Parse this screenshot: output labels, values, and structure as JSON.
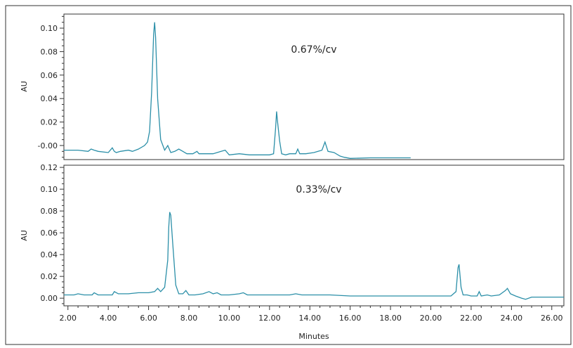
{
  "chart_data": [
    {
      "type": "line",
      "annotation": "0.67%/cv",
      "ylabel": "AU",
      "xlabel": "",
      "xlim": [
        1.8,
        26.6
      ],
      "ylim": [
        -0.012,
        0.112
      ],
      "yticks": [
        "-0.00",
        "0.02",
        "0.04",
        "0.06",
        "0.08",
        "0.10"
      ],
      "ytick_values": [
        0,
        0.02,
        0.04,
        0.06,
        0.08,
        0.1
      ],
      "grid": false,
      "color": "#2b8fa8",
      "x": [
        1.8,
        2.5,
        3.0,
        3.15,
        3.3,
        3.5,
        4.0,
        4.2,
        4.3,
        4.4,
        4.6,
        5.0,
        5.2,
        5.5,
        5.8,
        5.95,
        6.05,
        6.15,
        6.25,
        6.3,
        6.35,
        6.45,
        6.6,
        6.8,
        6.95,
        7.1,
        7.3,
        7.5,
        7.7,
        7.9,
        8.2,
        8.4,
        8.5,
        8.7,
        9.2,
        9.6,
        9.8,
        10.0,
        10.5,
        11.0,
        11.5,
        12.0,
        12.2,
        12.3,
        12.35,
        12.4,
        12.5,
        12.6,
        12.8,
        13.0,
        13.3,
        13.4,
        13.5,
        13.8,
        14.2,
        14.6,
        14.75,
        14.9,
        15.2,
        15.5,
        15.7,
        16.0,
        17.0,
        18.0,
        19.0
      ],
      "values": [
        -0.004,
        -0.004,
        -0.005,
        -0.003,
        -0.004,
        -0.005,
        -0.006,
        -0.002,
        -0.005,
        -0.006,
        -0.005,
        -0.004,
        -0.005,
        -0.003,
        0.0,
        0.003,
        0.012,
        0.045,
        0.095,
        0.105,
        0.092,
        0.04,
        0.005,
        -0.004,
        0.0,
        -0.006,
        -0.005,
        -0.003,
        -0.005,
        -0.007,
        -0.007,
        -0.005,
        -0.007,
        -0.007,
        -0.007,
        -0.005,
        -0.004,
        -0.008,
        -0.007,
        -0.008,
        -0.008,
        -0.008,
        -0.007,
        0.015,
        0.029,
        0.02,
        0.004,
        -0.007,
        -0.008,
        -0.007,
        -0.007,
        -0.003,
        -0.007,
        -0.007,
        -0.006,
        -0.004,
        0.003,
        -0.005,
        -0.006,
        -0.009,
        -0.01,
        -0.011,
        -0.0105,
        -0.0105,
        -0.0105
      ]
    },
    {
      "type": "line",
      "annotation": "0.33%/cv",
      "ylabel": "AU",
      "xlabel": "Minutes",
      "xlim": [
        1.8,
        26.6
      ],
      "ylim": [
        -0.007,
        0.122
      ],
      "yticks": [
        "0.00",
        "0.02",
        "0.04",
        "0.06",
        "0.08",
        "0.10",
        "0.12"
      ],
      "ytick_values": [
        0,
        0.02,
        0.04,
        0.06,
        0.08,
        0.1,
        0.12
      ],
      "xticks": [
        "2.00",
        "4.00",
        "6.00",
        "8.00",
        "10.00",
        "12.00",
        "14.00",
        "16.00",
        "18.00",
        "20.00",
        "22.00",
        "24.00",
        "26.00"
      ],
      "xtick_values": [
        2,
        4,
        6,
        8,
        10,
        12,
        14,
        16,
        18,
        20,
        22,
        24,
        26
      ],
      "grid": false,
      "color": "#2b8fa8",
      "x": [
        1.8,
        2.3,
        2.5,
        2.8,
        3.2,
        3.3,
        3.5,
        4.0,
        4.2,
        4.3,
        4.5,
        5.0,
        5.5,
        6.0,
        6.3,
        6.45,
        6.6,
        6.8,
        6.95,
        7.0,
        7.05,
        7.1,
        7.2,
        7.35,
        7.5,
        7.7,
        7.85,
        8.0,
        8.3,
        8.7,
        9.0,
        9.2,
        9.4,
        9.6,
        10.0,
        10.5,
        10.7,
        10.9,
        11.5,
        12.0,
        12.5,
        13.0,
        13.3,
        13.6,
        14.0,
        15.0,
        16.0,
        17.0,
        18.0,
        19.0,
        20.0,
        21.0,
        21.25,
        21.35,
        21.4,
        21.5,
        21.6,
        21.8,
        22.0,
        22.3,
        22.4,
        22.5,
        22.8,
        23.0,
        23.4,
        23.7,
        23.8,
        23.95,
        24.2,
        24.5,
        24.7,
        25.0,
        26.0,
        26.6
      ],
      "values": [
        0.003,
        0.003,
        0.004,
        0.003,
        0.003,
        0.005,
        0.003,
        0.003,
        0.003,
        0.006,
        0.004,
        0.004,
        0.005,
        0.005,
        0.006,
        0.009,
        0.006,
        0.01,
        0.035,
        0.065,
        0.079,
        0.076,
        0.05,
        0.012,
        0.004,
        0.004,
        0.007,
        0.003,
        0.003,
        0.004,
        0.006,
        0.004,
        0.005,
        0.003,
        0.003,
        0.004,
        0.005,
        0.003,
        0.003,
        0.003,
        0.003,
        0.003,
        0.004,
        0.003,
        0.003,
        0.003,
        0.002,
        0.002,
        0.002,
        0.002,
        0.002,
        0.002,
        0.006,
        0.028,
        0.031,
        0.01,
        0.003,
        0.003,
        0.002,
        0.002,
        0.006,
        0.002,
        0.003,
        0.002,
        0.003,
        0.007,
        0.009,
        0.004,
        0.002,
        0.0,
        -0.001,
        0.001,
        0.001,
        0.001
      ]
    }
  ]
}
